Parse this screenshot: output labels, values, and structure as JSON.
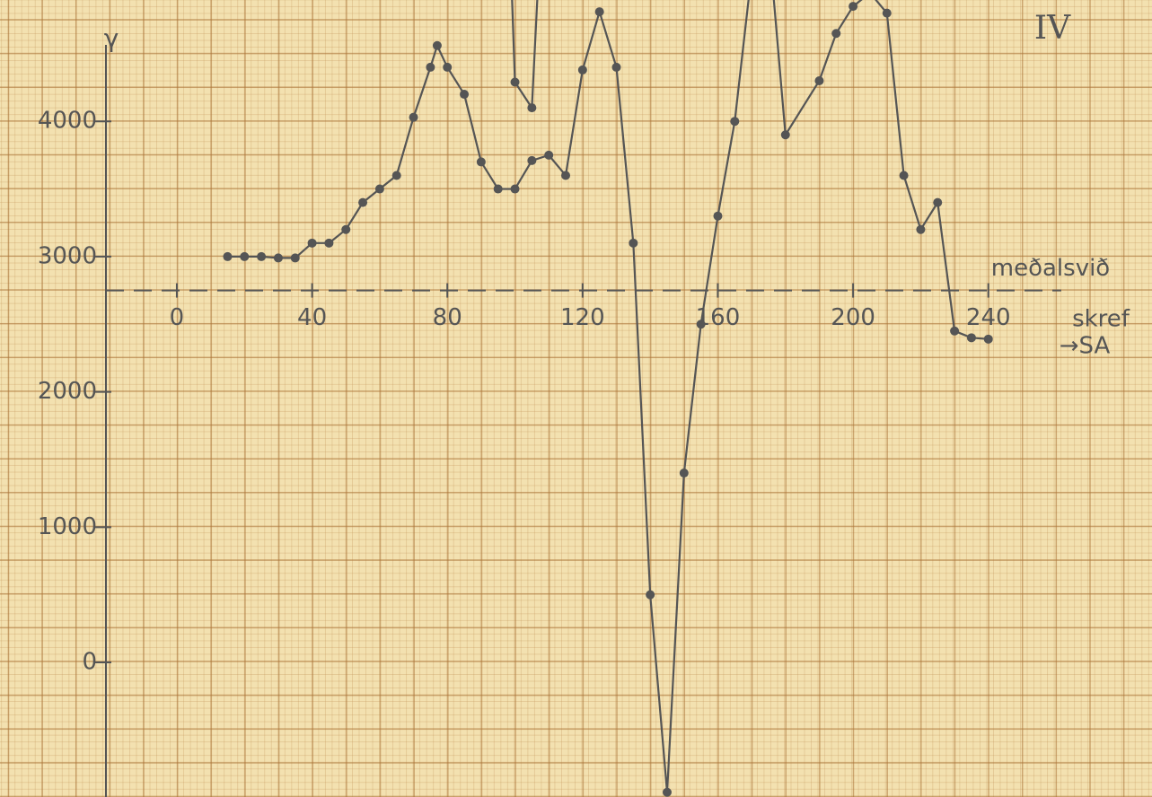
{
  "chart_data": {
    "type": "line",
    "title": "IV",
    "y_label": "γ",
    "x_label": "skref",
    "direction_label": "→SA",
    "reference_line": {
      "value": 2750,
      "label": "meðalsvið"
    },
    "xlim": [
      -52.3,
      288.4
    ],
    "ylim": [
      -995,
      4897
    ],
    "xticks": [
      0,
      40,
      80,
      120,
      160,
      200,
      240
    ],
    "yticks": [
      0,
      1000,
      2000,
      3000,
      4000
    ],
    "series": [
      {
        "color": "#555555",
        "x": [
          15,
          20,
          25,
          30,
          35,
          40,
          45,
          50,
          55,
          60,
          65,
          70,
          75,
          77,
          80,
          85,
          90,
          95,
          100,
          105,
          110,
          115,
          120,
          125,
          130,
          135,
          140,
          145,
          150,
          155,
          160,
          165,
          170,
          175,
          180,
          190,
          195,
          200,
          205,
          210,
          215,
          220,
          225,
          230,
          235,
          240
        ],
        "values": [
          3000,
          3000,
          3000,
          2990,
          2990,
          3100,
          3100,
          3200,
          3400,
          3500,
          3600,
          4030,
          4400,
          4560,
          4400,
          4200,
          3700,
          3500,
          3500,
          3710,
          3750,
          3600,
          4380,
          4810,
          4400,
          3100,
          500,
          -960,
          1400,
          2500,
          3300,
          4000,
          5100,
          5350,
          3900,
          4300,
          4650,
          4850,
          4950,
          4800,
          3600,
          3200,
          3400,
          2450,
          2400,
          2390
        ]
      },
      {
        "color": "#555555",
        "x": [
          99,
          100,
          105,
          107
        ],
        "values": [
          5000,
          4290,
          4100,
          5100
        ]
      }
    ]
  }
}
